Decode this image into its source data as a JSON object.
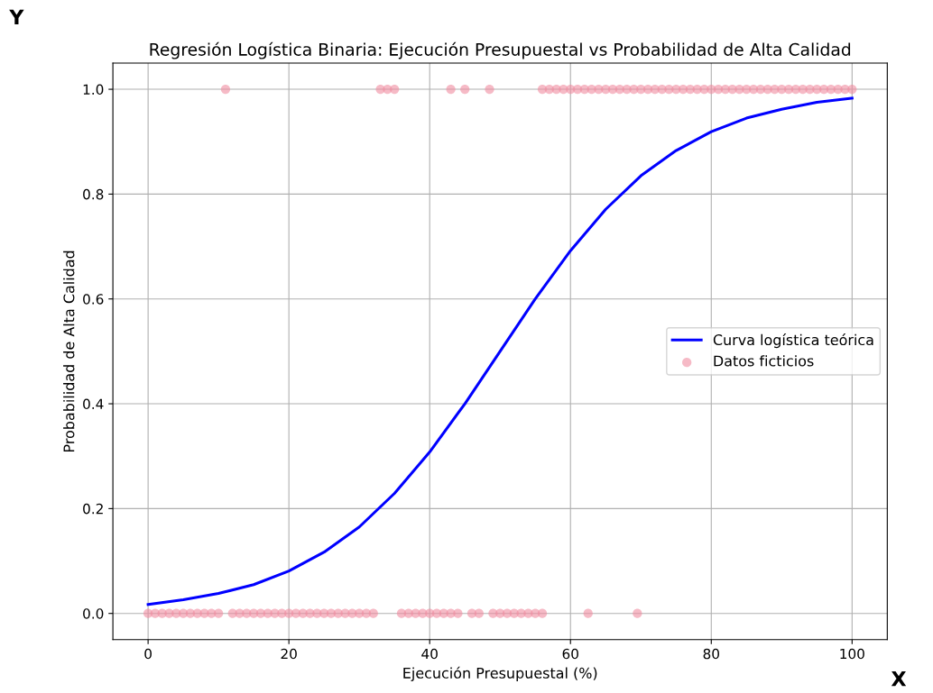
{
  "chart_data": {
    "type": "line",
    "title": "Regresión Logística Binaria: Ejecución Presupuestal vs Probabilidad de Alta Calidad",
    "xlabel": "Ejecución Presupuestal (%)",
    "ylabel": "Probabilidad de Alta Calidad",
    "annotations": [
      "Y",
      "X"
    ],
    "xlim": [
      -5,
      105
    ],
    "ylim": [
      -0.05,
      1.05
    ],
    "xticks": [
      0,
      20,
      40,
      60,
      80,
      100
    ],
    "yticks": [
      {
        "value": 0,
        "label": "0.0"
      },
      {
        "value": 0.2,
        "label": "0.2"
      },
      {
        "value": 0.4,
        "label": "0.4"
      },
      {
        "value": 0.6,
        "label": "0.6"
      },
      {
        "value": 0.8,
        "label": "0.8"
      },
      {
        "value": 1,
        "label": "1.0"
      }
    ],
    "grid": true,
    "legend": "right",
    "series": [
      {
        "name": "Curva logística teórica",
        "color": "#0000ff",
        "x": [
          0,
          5,
          10,
          15,
          20,
          25,
          30,
          35,
          40,
          45,
          50,
          55,
          60,
          65,
          70,
          75,
          80,
          85,
          90,
          95,
          100
        ],
        "values": [
          0.017,
          0.026,
          0.038,
          0.055,
          0.081,
          0.117,
          0.165,
          0.229,
          0.308,
          0.4,
          0.5,
          0.6,
          0.692,
          0.771,
          0.835,
          0.883,
          0.919,
          0.945,
          0.962,
          0.975,
          0.983
        ]
      },
      {
        "name": "Datos ficticios",
        "type": "scatter",
        "color": "#f08ca0",
        "x": [
          11,
          33,
          34,
          35,
          43,
          45,
          48.5,
          56,
          57,
          58,
          59,
          60,
          61,
          62,
          63,
          64,
          65,
          66,
          67,
          68,
          69,
          70,
          71,
          72,
          73,
          74,
          75,
          76,
          77,
          78,
          79,
          80,
          81,
          82,
          83,
          84,
          85,
          86,
          87,
          88,
          89,
          90,
          91,
          92,
          93,
          94,
          95,
          96,
          97,
          98,
          99,
          100,
          0,
          1,
          2,
          3,
          4,
          5,
          6,
          7,
          8,
          9,
          10,
          12,
          13,
          14,
          15,
          16,
          17,
          18,
          19,
          20,
          21,
          22,
          23,
          24,
          25,
          26,
          27,
          28,
          29,
          30,
          31,
          32,
          36,
          37,
          38,
          39,
          40,
          41,
          42,
          43,
          44,
          46,
          47,
          49,
          50,
          51,
          52,
          53,
          54,
          55,
          56,
          62.5,
          69.5
        ],
        "values": [
          1,
          1,
          1,
          1,
          1,
          1,
          1,
          1,
          1,
          1,
          1,
          1,
          1,
          1,
          1,
          1,
          1,
          1,
          1,
          1,
          1,
          1,
          1,
          1,
          1,
          1,
          1,
          1,
          1,
          1,
          1,
          1,
          1,
          1,
          1,
          1,
          1,
          1,
          1,
          1,
          1,
          1,
          1,
          1,
          1,
          1,
          1,
          1,
          1,
          1,
          1,
          1,
          0,
          0,
          0,
          0,
          0,
          0,
          0,
          0,
          0,
          0,
          0,
          0,
          0,
          0,
          0,
          0,
          0,
          0,
          0,
          0,
          0,
          0,
          0,
          0,
          0,
          0,
          0,
          0,
          0,
          0,
          0,
          0,
          0,
          0,
          0,
          0,
          0,
          0,
          0,
          0,
          0,
          0,
          0,
          0,
          0,
          0,
          0,
          0,
          0,
          0,
          0,
          0,
          0
        ]
      }
    ]
  }
}
